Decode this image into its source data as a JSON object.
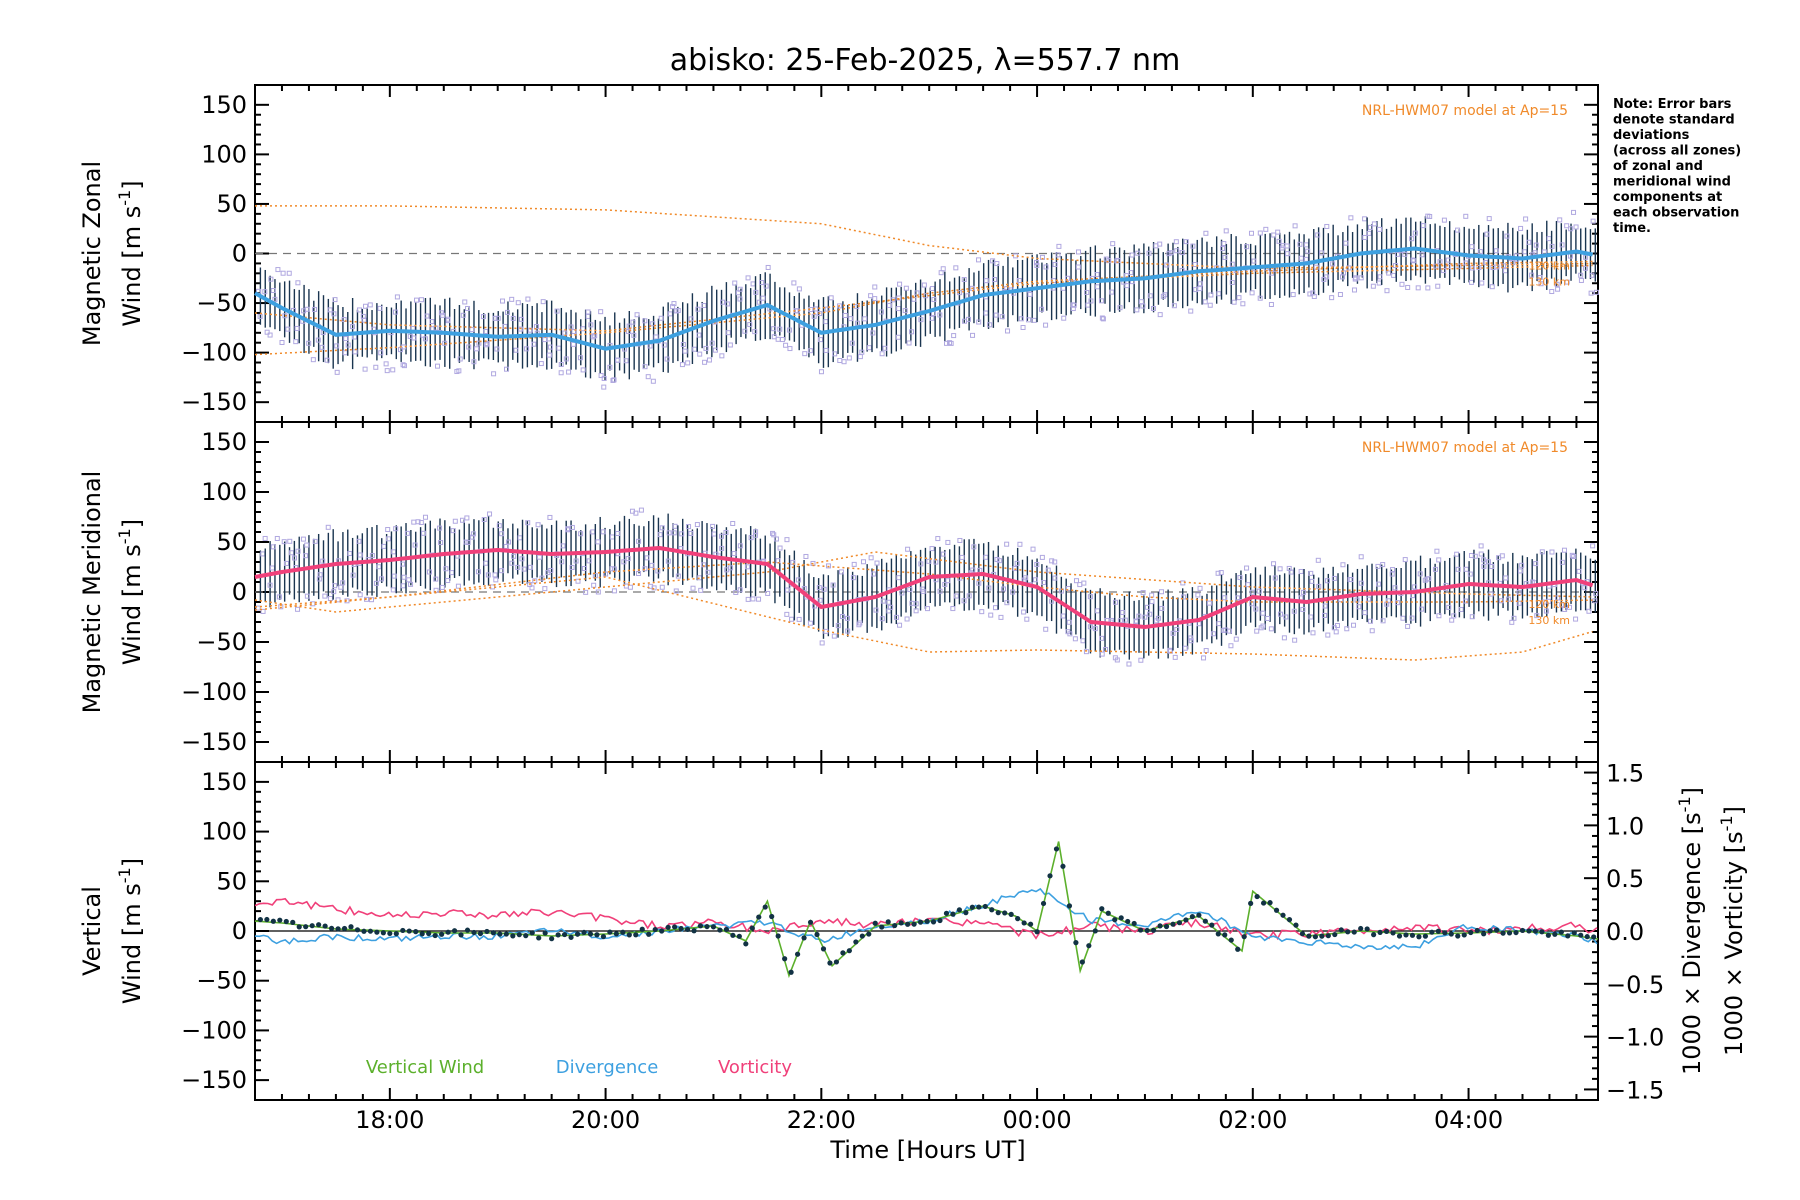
{
  "title": "abisko: 25-Feb-2025, λ=557.7 nm",
  "note_lines": [
    "Note: Error bars",
    "denote standard",
    "deviations",
    "(across all zones)",
    "of zonal and",
    "meridional wind",
    "components at",
    "each observation",
    "time."
  ],
  "colors": {
    "zonal": "#3da0e0",
    "meridional": "#f0407a",
    "vertical": "#5cb02c",
    "divergence": "#3da0e0",
    "vorticity": "#f0407a",
    "model": "#f08a2a",
    "scatter": "#b0a8e0",
    "errorbar": "#1a3550"
  },
  "x_axis": {
    "label": "Time [Hours UT]",
    "range_hours": [
      16.75,
      29.2
    ],
    "ticks": [
      {
        "h": 18,
        "label": "18:00"
      },
      {
        "h": 20,
        "label": "20:00"
      },
      {
        "h": 22,
        "label": "22:00"
      },
      {
        "h": 24,
        "label": "00:00"
      },
      {
        "h": 26,
        "label": "02:00"
      },
      {
        "h": 28,
        "label": "04:00"
      }
    ]
  },
  "chart_data": [
    {
      "type": "line",
      "panel": "zonal",
      "ylabel_line1": "Magnetic Zonal",
      "ylabel_line2": "Wind [m s",
      "ylabel_sup": "-1",
      "ylabel_close": "]",
      "ylim": [
        -170,
        170
      ],
      "yticks": [
        -150,
        -100,
        -50,
        0,
        50,
        100,
        150
      ],
      "model_label": "NRL-HWM07 model at Ap=15",
      "model_lines": [
        {
          "name": "120 km",
          "x": [
            16.75,
            18,
            20,
            22,
            23,
            24,
            26,
            28,
            29.2
          ],
          "y": [
            48,
            48,
            44,
            30,
            8,
            -5,
            -15,
            -12,
            -10
          ]
        },
        {
          "name": "130 km",
          "x": [
            16.75,
            18,
            20,
            22,
            23,
            24,
            26,
            28,
            29.2
          ],
          "y": [
            -102,
            -95,
            -80,
            -60,
            -40,
            -28,
            -18,
            -10,
            -8
          ]
        },
        {
          "name": "",
          "x": [
            16.75,
            18,
            20,
            22,
            24,
            26,
            28,
            29.2
          ],
          "y": [
            -60,
            -72,
            -78,
            -55,
            -30,
            -20,
            -15,
            -12
          ]
        }
      ],
      "km_labels": [
        "120 km",
        "130 km"
      ],
      "series": [
        {
          "name": "",
          "x": [
            16.75,
            17.0,
            17.5,
            18.0,
            18.5,
            19.0,
            19.5,
            20.0,
            20.5,
            21.0,
            21.5,
            22.0,
            22.5,
            23.0,
            23.5,
            24.0,
            24.5,
            25.0,
            25.5,
            26.0,
            26.5,
            27.0,
            27.5,
            28.0,
            28.5,
            29.0,
            29.2
          ],
          "y": [
            -40,
            -55,
            -82,
            -78,
            -80,
            -84,
            -82,
            -96,
            -88,
            -68,
            -52,
            -80,
            -72,
            -58,
            -42,
            -35,
            -28,
            -25,
            -18,
            -14,
            -10,
            0,
            5,
            -2,
            -5,
            2,
            -2
          ]
        }
      ]
    },
    {
      "type": "line",
      "panel": "meridional",
      "ylabel_line1": "Magnetic Meridional",
      "ylabel_line2": "Wind [m s",
      "ylabel_sup": "-1",
      "ylabel_close": "]",
      "ylim": [
        -170,
        170
      ],
      "yticks": [
        -150,
        -100,
        -50,
        0,
        50,
        100,
        150
      ],
      "model_label": "NRL-HWM07 model at Ap=15",
      "model_lines": [
        {
          "name": "120 km",
          "x": [
            16.75,
            18,
            20,
            21.5,
            23,
            24,
            25,
            26,
            28,
            29.2
          ],
          "y": [
            -18,
            -5,
            20,
            30,
            18,
            5,
            -5,
            -10,
            -10,
            -8
          ]
        },
        {
          "name": "130 km",
          "x": [
            16.75,
            18,
            20,
            22,
            23,
            24,
            26,
            27.5,
            28.5,
            29.2
          ],
          "y": [
            -15,
            -5,
            15,
            -38,
            -60,
            -58,
            -62,
            -68,
            -60,
            -38
          ]
        },
        {
          "name": "",
          "x": [
            16.75,
            17.5,
            18.5,
            20,
            21.5,
            22.5,
            24,
            26,
            28,
            29.2
          ],
          "y": [
            -8,
            -20,
            -10,
            5,
            20,
            40,
            20,
            5,
            -2,
            -5
          ]
        }
      ],
      "km_labels": [
        "120 km",
        "130 km"
      ],
      "series": [
        {
          "name": "",
          "x": [
            16.75,
            17.0,
            17.5,
            18.0,
            18.5,
            19.0,
            19.5,
            20.0,
            20.5,
            21.0,
            21.5,
            22.0,
            22.5,
            23.0,
            23.5,
            24.0,
            24.5,
            25.0,
            25.5,
            26.0,
            26.5,
            27.0,
            27.5,
            28.0,
            28.5,
            29.0,
            29.2
          ],
          "y": [
            15,
            20,
            28,
            32,
            38,
            42,
            38,
            40,
            44,
            35,
            28,
            -15,
            -5,
            15,
            18,
            5,
            -30,
            -35,
            -28,
            -5,
            -10,
            -2,
            0,
            8,
            5,
            12,
            5
          ]
        }
      ]
    },
    {
      "type": "line",
      "panel": "vertical",
      "ylabel_line1": "Vertical",
      "ylabel_line2": "Wind [m s",
      "ylabel_sup": "-1",
      "ylabel_close": "]",
      "ylim": [
        -170,
        170
      ],
      "yticks": [
        -150,
        -100,
        -50,
        0,
        50,
        100,
        150
      ],
      "y2lim": [
        -1.6,
        1.6
      ],
      "y2ticks": [
        {
          "v": 1.5,
          "label": "1.5"
        },
        {
          "v": 1.0,
          "label": "1.0"
        },
        {
          "v": 0.5,
          "label": "0.5"
        },
        {
          "v": 0.0,
          "label": "0.0"
        },
        {
          "v": -0.5,
          "label": "−0.5"
        },
        {
          "v": -1.0,
          "label": "−1.0"
        },
        {
          "v": -1.5,
          "label": "−1.5"
        }
      ],
      "y2label_div": "1000 × Divergence [s",
      "y2label_vor": "1000 × Vorticity [s",
      "y2label_sup": "-1",
      "y2label_close": "]",
      "legend": [
        "Vertical Wind",
        "Divergence",
        "Vorticity"
      ],
      "series": [
        {
          "name": "Vertical Wind",
          "x": [
            16.75,
            17.0,
            17.5,
            18.0,
            18.5,
            19.0,
            19.5,
            20.0,
            20.5,
            21.0,
            21.3,
            21.5,
            21.7,
            21.9,
            22.1,
            22.5,
            23.0,
            23.5,
            23.8,
            24.0,
            24.2,
            24.4,
            24.6,
            25.0,
            25.5,
            25.9,
            26.0,
            26.5,
            27.0,
            27.5,
            28.0,
            28.5,
            29.0,
            29.2
          ],
          "y": [
            10,
            8,
            2,
            0,
            -2,
            -2,
            -5,
            -3,
            0,
            5,
            -10,
            30,
            -45,
            10,
            -35,
            5,
            10,
            25,
            15,
            0,
            90,
            -40,
            20,
            0,
            15,
            -20,
            40,
            -5,
            0,
            -3,
            -2,
            0,
            -5,
            -8
          ]
        },
        {
          "name": "Divergence",
          "x": [
            16.75,
            17.0,
            17.5,
            18.0,
            18.5,
            19.0,
            19.5,
            20.0,
            20.5,
            21.0,
            21.5,
            22.0,
            22.5,
            23.0,
            23.5,
            24.0,
            24.5,
            25.0,
            25.5,
            26.0,
            26.5,
            27.0,
            27.5,
            28.0,
            28.5,
            29.0,
            29.2
          ],
          "y": [
            -0.05,
            -0.1,
            -0.05,
            -0.08,
            -0.05,
            -0.05,
            0.0,
            -0.05,
            0.0,
            0.05,
            0.08,
            -0.1,
            0.05,
            0.1,
            0.25,
            0.4,
            0.1,
            0.05,
            0.2,
            -0.05,
            -0.1,
            -0.15,
            -0.15,
            0.05,
            0.0,
            -0.05,
            -0.1
          ]
        },
        {
          "name": "Vorticity",
          "x": [
            16.75,
            17.0,
            17.5,
            18.0,
            18.5,
            19.0,
            19.5,
            20.0,
            20.5,
            21.0,
            21.5,
            22.0,
            22.5,
            23.0,
            23.5,
            24.0,
            24.5,
            25.0,
            25.5,
            26.0,
            26.5,
            27.0,
            27.5,
            28.0,
            28.5,
            29.0,
            29.2
          ],
          "y": [
            0.25,
            0.3,
            0.2,
            0.15,
            0.18,
            0.15,
            0.18,
            0.12,
            0.05,
            0.08,
            0.0,
            0.1,
            0.05,
            0.1,
            0.08,
            -0.05,
            0.05,
            0.0,
            0.08,
            -0.05,
            -0.02,
            0.0,
            0.05,
            0.0,
            0.02,
            0.05,
            0.0
          ]
        }
      ]
    }
  ]
}
